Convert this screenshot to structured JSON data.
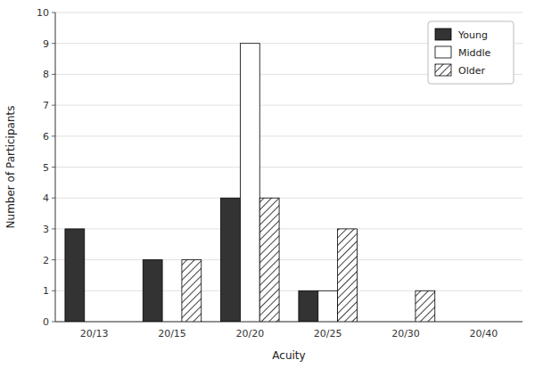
{
  "chart_data": {
    "type": "bar",
    "xlabel": "Acuity",
    "ylabel": "Number of Participants",
    "categories": [
      "20/13",
      "20/15",
      "20/20",
      "20/25",
      "20/30",
      "20/40"
    ],
    "series": [
      {
        "name": "Young",
        "color": "#333333",
        "values": [
          3,
          2,
          4,
          1,
          0,
          0
        ]
      },
      {
        "name": "Middle",
        "color": "#ffffff",
        "values": [
          0,
          0,
          9,
          1,
          0,
          0
        ]
      },
      {
        "name": "Older",
        "color": "#ffffff",
        "values": [
          0,
          2,
          4,
          3,
          1,
          0
        ]
      }
    ],
    "ylim": [
      0,
      10
    ],
    "yticks": [
      0,
      1,
      2,
      3,
      4,
      5,
      6,
      7,
      8,
      9,
      10
    ],
    "grid": true,
    "legend": "upper right"
  }
}
